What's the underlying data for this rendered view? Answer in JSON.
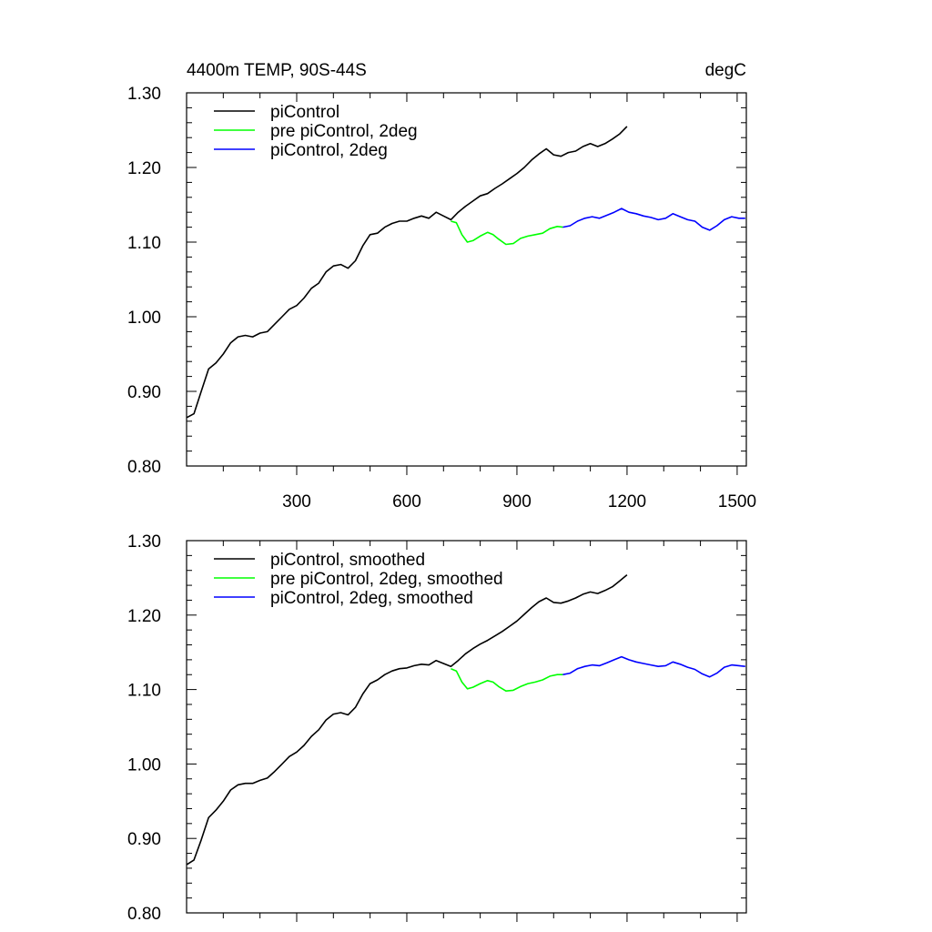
{
  "header": {
    "left": "4400m TEMP, 90S-44S",
    "right": "degC"
  },
  "chart_data": [
    {
      "type": "line",
      "xlim": [
        0,
        1525
      ],
      "ylim": [
        0.8,
        1.3
      ],
      "yticks": [
        "0.80",
        "0.90",
        "1.00",
        "1.10",
        "1.20",
        "1.30"
      ],
      "xticks": [
        "300",
        "600",
        "900",
        "1200",
        "1500"
      ],
      "legend": [
        "piControl",
        "pre piControl, 2deg",
        "piControl, 2deg"
      ],
      "series": [
        {
          "name": "piControl",
          "color": "#000000",
          "points": [
            [
              1,
              0.865
            ],
            [
              20,
              0.87
            ],
            [
              40,
              0.9
            ],
            [
              60,
              0.93
            ],
            [
              80,
              0.938
            ],
            [
              100,
              0.95
            ],
            [
              120,
              0.965
            ],
            [
              140,
              0.973
            ],
            [
              160,
              0.975
            ],
            [
              180,
              0.973
            ],
            [
              200,
              0.978
            ],
            [
              220,
              0.98
            ],
            [
              240,
              0.99
            ],
            [
              260,
              1.0
            ],
            [
              280,
              1.01
            ],
            [
              300,
              1.015
            ],
            [
              320,
              1.025
            ],
            [
              340,
              1.038
            ],
            [
              360,
              1.045
            ],
            [
              380,
              1.06
            ],
            [
              400,
              1.068
            ],
            [
              420,
              1.07
            ],
            [
              440,
              1.065
            ],
            [
              460,
              1.075
            ],
            [
              480,
              1.095
            ],
            [
              500,
              1.11
            ],
            [
              520,
              1.112
            ],
            [
              540,
              1.12
            ],
            [
              560,
              1.125
            ],
            [
              580,
              1.128
            ],
            [
              600,
              1.128
            ],
            [
              620,
              1.132
            ],
            [
              640,
              1.135
            ],
            [
              660,
              1.132
            ],
            [
              680,
              1.14
            ],
            [
              700,
              1.135
            ],
            [
              720,
              1.13
            ],
            [
              740,
              1.14
            ],
            [
              760,
              1.148
            ],
            [
              780,
              1.155
            ],
            [
              800,
              1.162
            ],
            [
              820,
              1.165
            ],
            [
              840,
              1.172
            ],
            [
              860,
              1.178
            ],
            [
              880,
              1.185
            ],
            [
              900,
              1.192
            ],
            [
              920,
              1.2
            ],
            [
              940,
              1.21
            ],
            [
              960,
              1.218
            ],
            [
              980,
              1.225
            ],
            [
              1000,
              1.217
            ],
            [
              1020,
              1.215
            ],
            [
              1040,
              1.22
            ],
            [
              1060,
              1.222
            ],
            [
              1080,
              1.228
            ],
            [
              1100,
              1.232
            ],
            [
              1120,
              1.228
            ],
            [
              1140,
              1.232
            ],
            [
              1160,
              1.238
            ],
            [
              1180,
              1.245
            ],
            [
              1200,
              1.255
            ]
          ]
        },
        {
          "name": "pre piControl, 2deg",
          "color": "#00ff00",
          "points": [
            [
              720,
              1.128
            ],
            [
              735,
              1.126
            ],
            [
              750,
              1.11
            ],
            [
              765,
              1.1
            ],
            [
              780,
              1.102
            ],
            [
              800,
              1.108
            ],
            [
              820,
              1.113
            ],
            [
              835,
              1.11
            ],
            [
              850,
              1.104
            ],
            [
              870,
              1.097
            ],
            [
              890,
              1.098
            ],
            [
              910,
              1.105
            ],
            [
              930,
              1.108
            ],
            [
              950,
              1.11
            ],
            [
              970,
              1.112
            ],
            [
              990,
              1.118
            ],
            [
              1010,
              1.121
            ],
            [
              1025,
              1.12
            ]
          ]
        },
        {
          "name": "piControl, 2deg",
          "color": "#0000ff",
          "points": [
            [
              1025,
              1.12
            ],
            [
              1045,
              1.122
            ],
            [
              1065,
              1.128
            ],
            [
              1085,
              1.132
            ],
            [
              1105,
              1.134
            ],
            [
              1125,
              1.132
            ],
            [
              1145,
              1.136
            ],
            [
              1165,
              1.14
            ],
            [
              1185,
              1.145
            ],
            [
              1205,
              1.14
            ],
            [
              1225,
              1.138
            ],
            [
              1245,
              1.135
            ],
            [
              1265,
              1.133
            ],
            [
              1285,
              1.13
            ],
            [
              1305,
              1.132
            ],
            [
              1325,
              1.138
            ],
            [
              1345,
              1.134
            ],
            [
              1365,
              1.13
            ],
            [
              1385,
              1.128
            ],
            [
              1405,
              1.12
            ],
            [
              1425,
              1.116
            ],
            [
              1445,
              1.122
            ],
            [
              1465,
              1.13
            ],
            [
              1485,
              1.134
            ],
            [
              1505,
              1.132
            ],
            [
              1522,
              1.132
            ]
          ]
        }
      ]
    },
    {
      "type": "line",
      "xlim": [
        0,
        1525
      ],
      "ylim": [
        0.8,
        1.3
      ],
      "yticks": [
        "0.80",
        "0.90",
        "1.00",
        "1.10",
        "1.20",
        "1.30"
      ],
      "xticks": [],
      "legend": [
        "piControl, smoothed",
        "pre piControl, 2deg, smoothed",
        "piControl, 2deg, smoothed"
      ],
      "series": [
        {
          "name": "piControl, smoothed",
          "color": "#000000",
          "points": [
            [
              1,
              0.865
            ],
            [
              20,
              0.871
            ],
            [
              40,
              0.898
            ],
            [
              60,
              0.928
            ],
            [
              80,
              0.938
            ],
            [
              100,
              0.95
            ],
            [
              120,
              0.965
            ],
            [
              140,
              0.972
            ],
            [
              160,
              0.974
            ],
            [
              180,
              0.974
            ],
            [
              200,
              0.978
            ],
            [
              220,
              0.981
            ],
            [
              240,
              0.99
            ],
            [
              260,
              1.0
            ],
            [
              280,
              1.01
            ],
            [
              300,
              1.016
            ],
            [
              320,
              1.025
            ],
            [
              340,
              1.037
            ],
            [
              360,
              1.046
            ],
            [
              380,
              1.059
            ],
            [
              400,
              1.067
            ],
            [
              420,
              1.069
            ],
            [
              440,
              1.066
            ],
            [
              460,
              1.076
            ],
            [
              480,
              1.094
            ],
            [
              500,
              1.108
            ],
            [
              520,
              1.113
            ],
            [
              540,
              1.12
            ],
            [
              560,
              1.125
            ],
            [
              580,
              1.128
            ],
            [
              600,
              1.129
            ],
            [
              620,
              1.132
            ],
            [
              640,
              1.134
            ],
            [
              660,
              1.133
            ],
            [
              680,
              1.139
            ],
            [
              700,
              1.135
            ],
            [
              720,
              1.131
            ],
            [
              740,
              1.139
            ],
            [
              760,
              1.148
            ],
            [
              780,
              1.155
            ],
            [
              800,
              1.161
            ],
            [
              820,
              1.166
            ],
            [
              840,
              1.172
            ],
            [
              860,
              1.178
            ],
            [
              880,
              1.185
            ],
            [
              900,
              1.192
            ],
            [
              920,
              1.201
            ],
            [
              940,
              1.21
            ],
            [
              960,
              1.218
            ],
            [
              980,
              1.223
            ],
            [
              1000,
              1.217
            ],
            [
              1020,
              1.216
            ],
            [
              1040,
              1.219
            ],
            [
              1060,
              1.223
            ],
            [
              1080,
              1.228
            ],
            [
              1100,
              1.231
            ],
            [
              1120,
              1.229
            ],
            [
              1140,
              1.233
            ],
            [
              1160,
              1.238
            ],
            [
              1180,
              1.246
            ],
            [
              1200,
              1.254
            ]
          ]
        },
        {
          "name": "pre piControl, 2deg, smoothed",
          "color": "#00ff00",
          "points": [
            [
              720,
              1.128
            ],
            [
              735,
              1.125
            ],
            [
              750,
              1.11
            ],
            [
              765,
              1.101
            ],
            [
              780,
              1.103
            ],
            [
              800,
              1.108
            ],
            [
              820,
              1.112
            ],
            [
              835,
              1.11
            ],
            [
              850,
              1.104
            ],
            [
              870,
              1.098
            ],
            [
              890,
              1.099
            ],
            [
              910,
              1.104
            ],
            [
              930,
              1.108
            ],
            [
              950,
              1.11
            ],
            [
              970,
              1.113
            ],
            [
              990,
              1.118
            ],
            [
              1010,
              1.12
            ],
            [
              1025,
              1.12
            ]
          ]
        },
        {
          "name": "piControl, 2deg, smoothed",
          "color": "#0000ff",
          "points": [
            [
              1025,
              1.12
            ],
            [
              1045,
              1.122
            ],
            [
              1065,
              1.128
            ],
            [
              1085,
              1.131
            ],
            [
              1105,
              1.133
            ],
            [
              1125,
              1.132
            ],
            [
              1145,
              1.136
            ],
            [
              1165,
              1.14
            ],
            [
              1185,
              1.144
            ],
            [
              1205,
              1.14
            ],
            [
              1225,
              1.137
            ],
            [
              1245,
              1.135
            ],
            [
              1265,
              1.133
            ],
            [
              1285,
              1.131
            ],
            [
              1305,
              1.132
            ],
            [
              1325,
              1.137
            ],
            [
              1345,
              1.134
            ],
            [
              1365,
              1.13
            ],
            [
              1385,
              1.127
            ],
            [
              1405,
              1.121
            ],
            [
              1425,
              1.117
            ],
            [
              1445,
              1.122
            ],
            [
              1465,
              1.13
            ],
            [
              1485,
              1.133
            ],
            [
              1505,
              1.132
            ],
            [
              1522,
              1.131
            ]
          ]
        }
      ]
    }
  ]
}
